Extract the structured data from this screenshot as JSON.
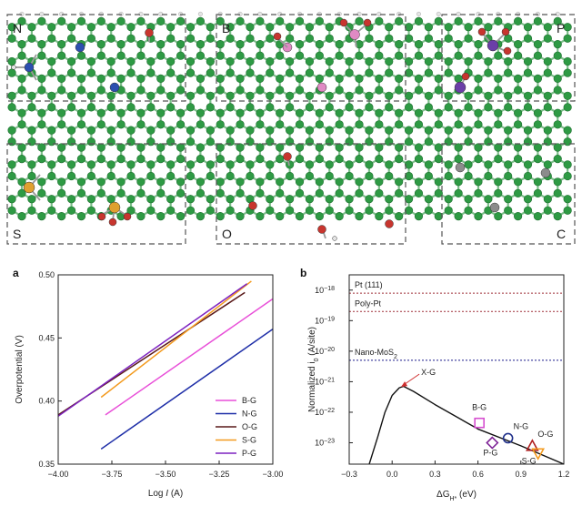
{
  "structure_panel": {
    "region_labels": [
      "N",
      "B",
      "P",
      "S",
      "O",
      "C"
    ],
    "atom_colors": {
      "carbon": "#2e9a44",
      "hydrogen": "#e4e4e4",
      "nitrogen": "#2c4fb0",
      "oxygen": "#c8352e",
      "boron": "#e08ac4",
      "phosphorus": "#6b3fa8",
      "sulfur": "#e0a030",
      "chlorine": "#8c8c8c"
    }
  },
  "panel_a_label": "a",
  "panel_b_label": "b",
  "chart_data": [
    {
      "type": "line",
      "panel": "a",
      "xlabel": "Log I (A)",
      "xlabel_parts": [
        "Log ",
        "I",
        " (A)"
      ],
      "ylabel": "Overpotential (V)",
      "xlim": [
        -4.0,
        -3.0
      ],
      "ylim": [
        0.35,
        0.5
      ],
      "xticks": [
        -4.0,
        -3.75,
        -3.5,
        -3.25,
        -3.0
      ],
      "xtick_labels": [
        "−4.00",
        "−3.75",
        "−3.50",
        "−3.25",
        "−3.00"
      ],
      "yticks": [
        0.35,
        0.4,
        0.45,
        0.5
      ],
      "ytick_labels": [
        "0.35",
        "0.40",
        "0.45",
        "0.50"
      ],
      "grid": false,
      "legend_position": "bottom-right",
      "series": [
        {
          "name": "B-G",
          "color": "#e84fd8",
          "points": [
            [
              -3.78,
              0.389
            ],
            [
              -3.0,
              0.481
            ]
          ]
        },
        {
          "name": "N-G",
          "color": "#1f2fa8",
          "points": [
            [
              -3.8,
              0.362
            ],
            [
              -3.0,
              0.457
            ]
          ]
        },
        {
          "name": "O-G",
          "color": "#5a1a1a",
          "points": [
            [
              -4.0,
              0.389
            ],
            [
              -3.13,
              0.486
            ]
          ]
        },
        {
          "name": "S-G",
          "color": "#f39a1e",
          "points": [
            [
              -3.8,
              0.403
            ],
            [
              -3.1,
              0.495
            ]
          ]
        },
        {
          "name": "P-G",
          "color": "#7d22c0",
          "points": [
            [
              -4.0,
              0.388
            ],
            [
              -3.12,
              0.493
            ]
          ]
        }
      ]
    },
    {
      "type": "scatter",
      "panel": "b",
      "xlabel": "ΔG_H* (eV)",
      "xlabel_parts": [
        "ΔG",
        "H*",
        " (eV)"
      ],
      "ylabel": "Normalized i_0 (A/site)",
      "ylabel_parts": [
        "Normalized i",
        "0",
        " (A/site)"
      ],
      "xlim": [
        -0.3,
        1.2
      ],
      "ylim_log10": [
        -23.7,
        -17.5
      ],
      "xticks": [
        -0.3,
        0.0,
        0.3,
        0.6,
        0.9,
        1.2
      ],
      "xtick_labels": [
        "−0.3",
        "0.0",
        "0.3",
        "0.6",
        "0.9",
        "1.2"
      ],
      "yticks_log10": [
        -23,
        -22,
        -21,
        -20,
        -19,
        -18
      ],
      "ytick_base": "10",
      "ytick_exponents": [
        "−23",
        "−22",
        "−21",
        "−20",
        "−19",
        "−18"
      ],
      "grid": false,
      "reference_lines": [
        {
          "label": "Pt (111)",
          "log10_i0": -18.1,
          "color": "#a0303a"
        },
        {
          "label": "Poly-Pt",
          "log10_i0": -18.7,
          "color": "#a0303a"
        },
        {
          "label": "Nano-MoS2",
          "label_parts": [
            "Nano-MoS",
            "2"
          ],
          "log10_i0": -20.3,
          "color": "#1a1a8a"
        }
      ],
      "volcano_curve": {
        "color": "#111111",
        "points": [
          [
            -0.16,
            -23.7
          ],
          [
            -0.1,
            -22.8
          ],
          [
            -0.05,
            -22.0
          ],
          [
            0.0,
            -21.45
          ],
          [
            0.05,
            -21.2
          ],
          [
            0.08,
            -21.15
          ],
          [
            0.15,
            -21.32
          ],
          [
            0.3,
            -21.75
          ],
          [
            0.6,
            -22.55
          ],
          [
            0.9,
            -23.1
          ],
          [
            1.2,
            -23.7
          ]
        ]
      },
      "annotation": {
        "text": "X-G",
        "arrow_to": [
          0.05,
          -21.2
        ]
      },
      "points": [
        {
          "name": "B-G",
          "x": 0.61,
          "log10_i0": -22.35,
          "marker": "square",
          "color": "#d64fd0"
        },
        {
          "name": "N-G",
          "x": 0.81,
          "log10_i0": -22.85,
          "marker": "circle",
          "color": "#1f2f8a"
        },
        {
          "name": "P-G",
          "x": 0.7,
          "log10_i0": -23.0,
          "marker": "diamond",
          "color": "#7d2296"
        },
        {
          "name": "O-G",
          "x": 0.98,
          "log10_i0": -23.1,
          "marker": "triangle-up",
          "color": "#b02020"
        },
        {
          "name": "S-G",
          "x": 1.02,
          "log10_i0": -23.35,
          "marker": "triangle-down",
          "color": "#f39a1e"
        }
      ]
    }
  ]
}
